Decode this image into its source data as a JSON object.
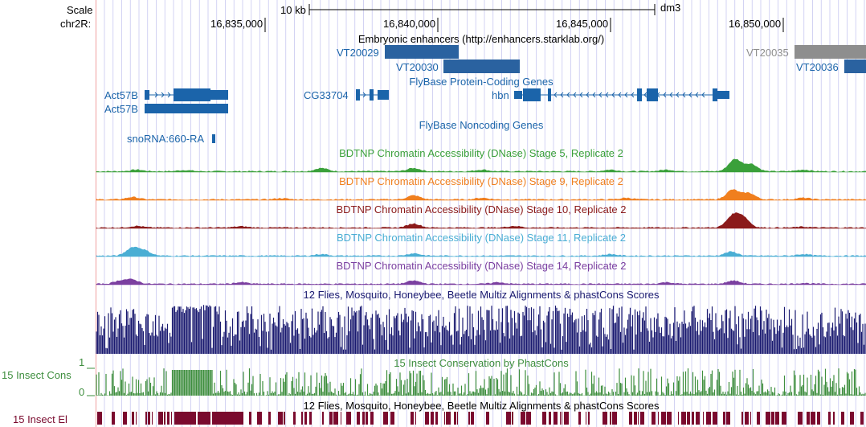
{
  "header": {
    "scale_label": "Scale",
    "chrom_label": "chr2R:",
    "scale_bar_text": "10 kb",
    "assembly": "dm3",
    "positions": [
      "16,835,000",
      "16,840,000",
      "16,845,000",
      "16,850,000"
    ]
  },
  "tracks": {
    "enhancers": {
      "title": "Embryonic enhancers (http://enhancers.starklab.org/)",
      "items": [
        {
          "name": "VT20029",
          "start": 16839200,
          "end": 16841300
        },
        {
          "name": "VT20030",
          "start": 16841000,
          "end": 16843300
        },
        {
          "name": "VT20035",
          "start": 16852400,
          "end": 16855600
        },
        {
          "name": "VT20036",
          "start": 16854000,
          "end": 16855600
        }
      ]
    },
    "protein_coding": {
      "title": "FlyBase Protein-Coding Genes",
      "genes": [
        "Act57B",
        "Act57B",
        "CG33704",
        "hbn"
      ]
    },
    "noncoding": {
      "title": "FlyBase Noncoding Genes",
      "genes": [
        "snoRNA:660-RA"
      ]
    },
    "dnase": [
      {
        "title": "BDTNP Chromatin Accessibility (DNase) Stage 5, Replicate 2",
        "color": "#3aa03a"
      },
      {
        "title": "BDTNP Chromatin Accessibility (DNase) Stage 9, Replicate 2",
        "color": "#f07f1e"
      },
      {
        "title": "BDTNP Chromatin Accessibility (DNase) Stage 10, Replicate 2",
        "color": "#8b1a1a"
      },
      {
        "title": "BDTNP Chromatin Accessibility (DNase) Stage 11, Replicate 2",
        "color": "#4aaed4"
      },
      {
        "title": "BDTNP Chromatin Accessibility (DNase) Stage 14, Replicate 2",
        "color": "#7b3fa0"
      }
    ],
    "multiz": {
      "title": "12 Flies, Mosquito, Honeybee, Beetle Multiz Alignments & phastCons Scores",
      "color": "#1a1a70"
    },
    "phastcons": {
      "side_label": "15 Insect Cons",
      "title": "15 Insect Conservation by PhastCons",
      "axis_max": "1",
      "axis_min": "0",
      "color": "#3e8e3e"
    },
    "elements": {
      "side_label": "15 Insect El",
      "title": "12 Flies, Mosquito, Honeybee, Beetle Multiz Alignments & phastCons Scores",
      "color": "#7a0a2e"
    }
  },
  "colors": {
    "gene": "#1b64aa",
    "enhancer": "#2a62a0",
    "enhancer_grey": "#8e8e8e",
    "grid": "#c8c8f0",
    "sidebar_line": "#f0a0a0"
  }
}
